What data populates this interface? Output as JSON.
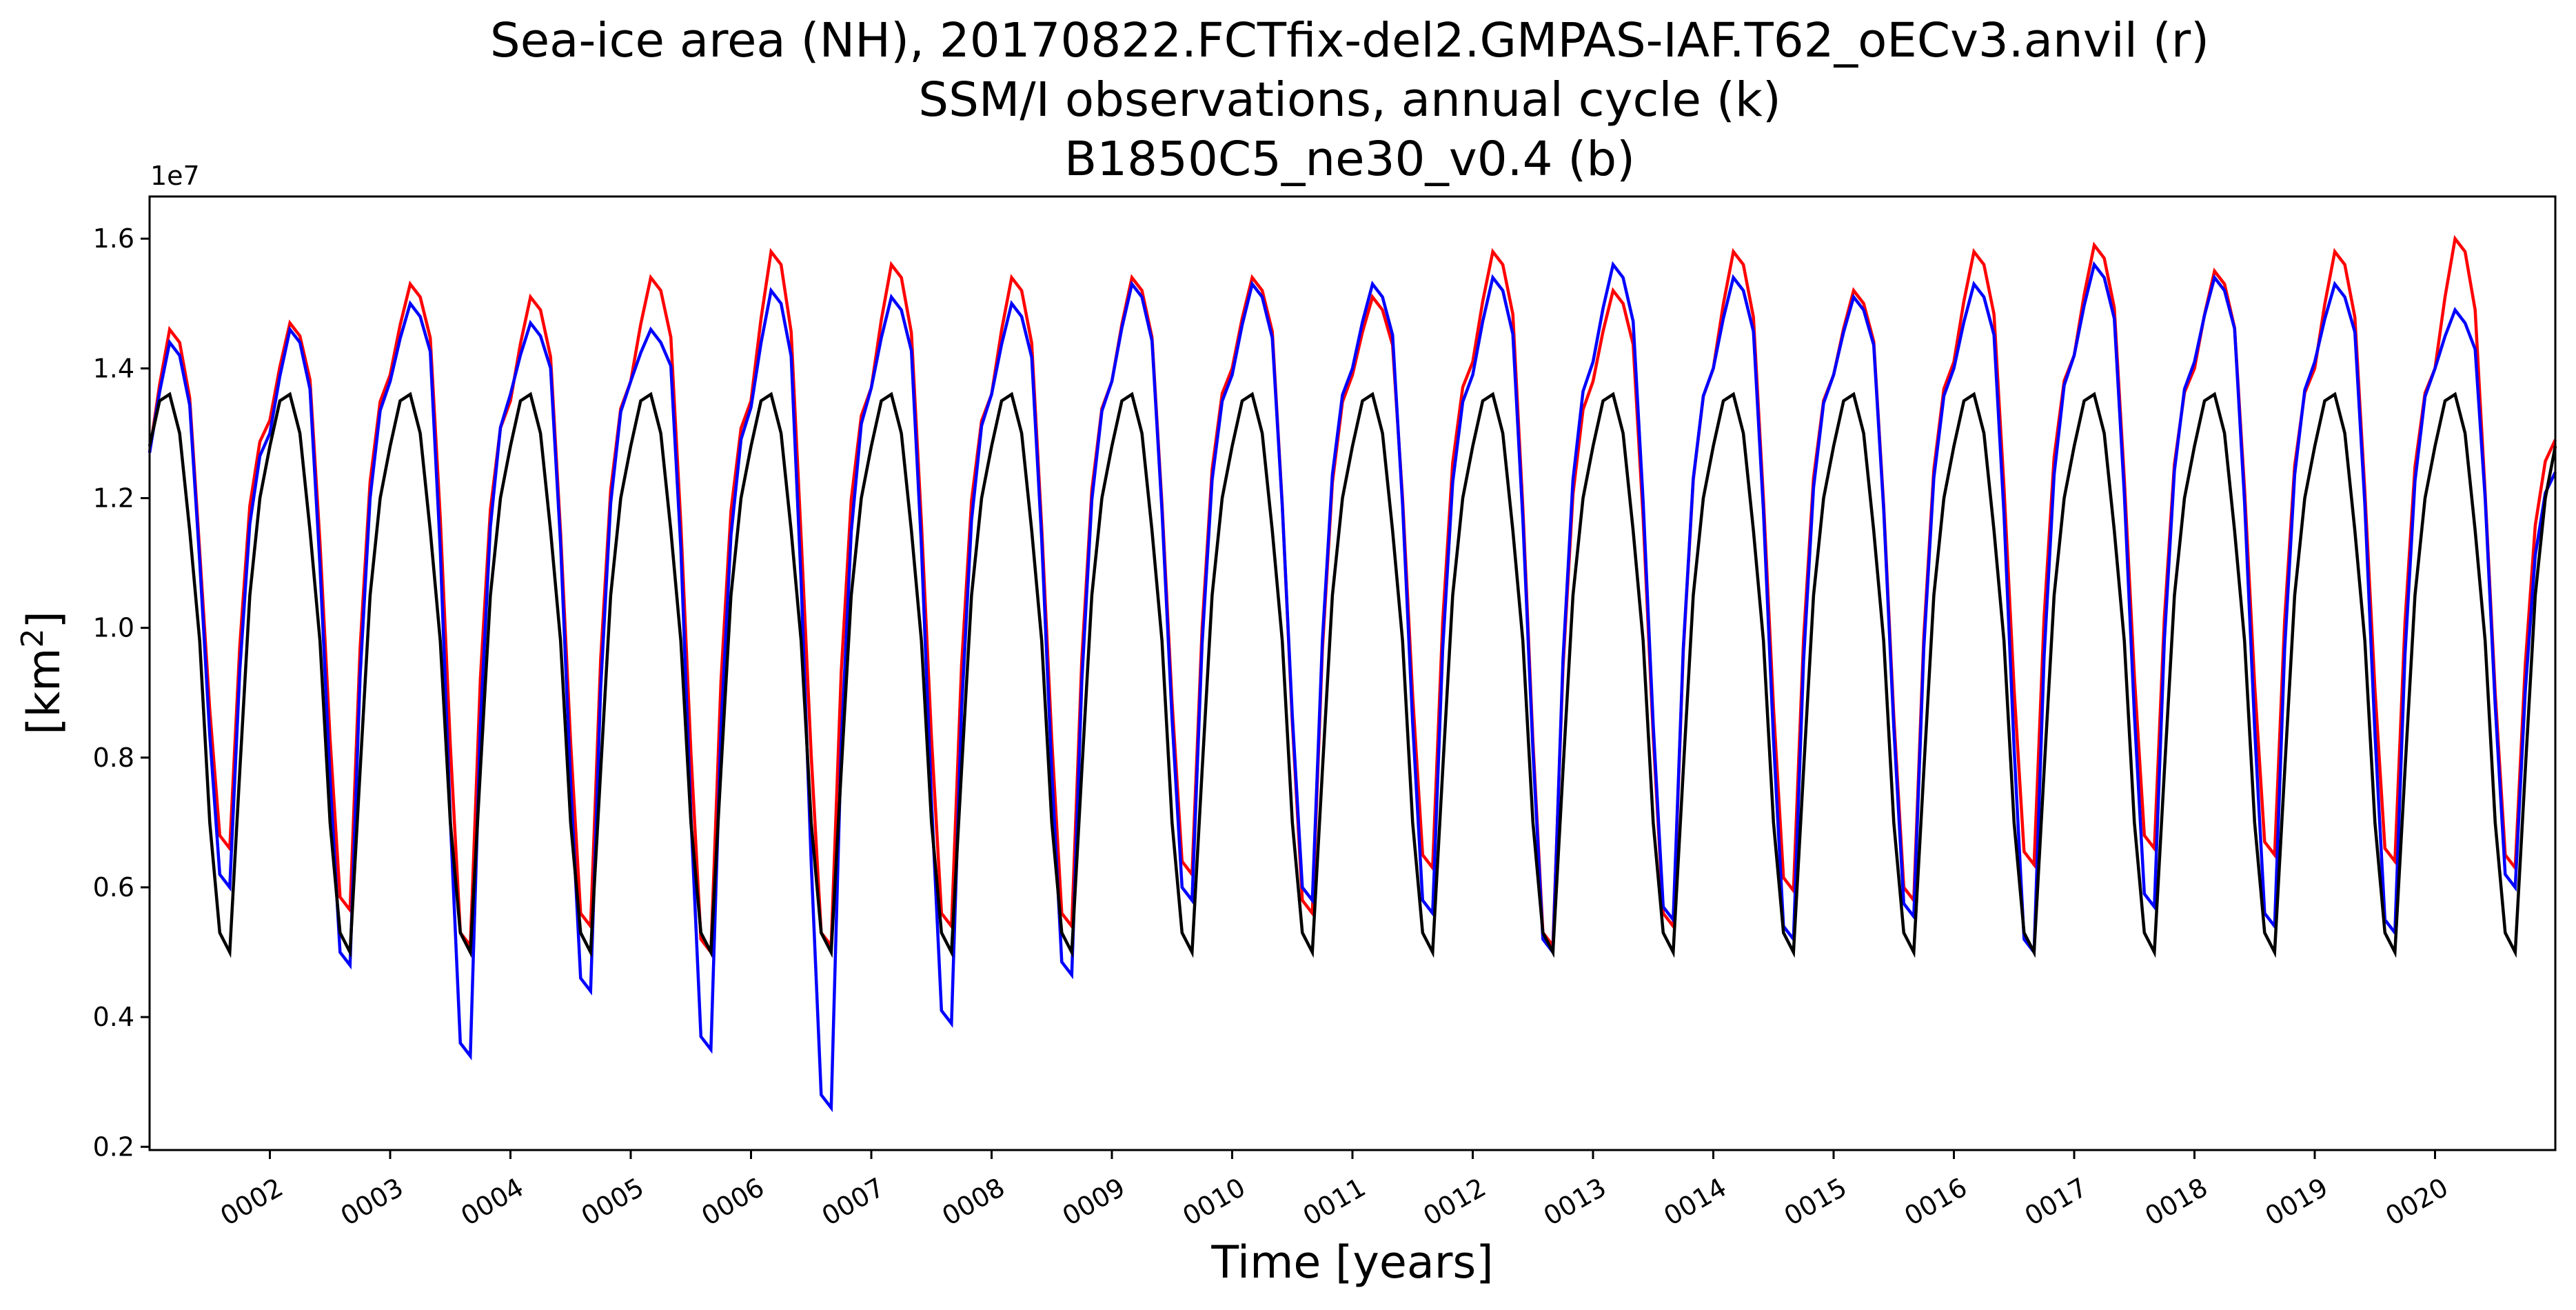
{
  "chart_data": {
    "type": "line",
    "title_lines": [
      "Sea-ice area (NH), 20170822.FCTfix-del2.GMPAS-IAF.T62_oECv3.anvil (r)",
      "SSM/I observations, annual cycle (k)",
      "B1850C5_ne30_v0.4 (b)"
    ],
    "xlabel": "Time [years]",
    "ylabel_base": "[km",
    "ylabel_sup": "2",
    "ylabel_end": "]",
    "y_offset_label": "1e7",
    "xlim": [
      1.0,
      21.0
    ],
    "ylim": [
      0.195,
      1.665
    ],
    "y_ticks": [
      0.2,
      0.4,
      0.6,
      0.8,
      1.0,
      1.2,
      1.4,
      1.6
    ],
    "y_tick_labels": [
      "0.2",
      "0.4",
      "0.6",
      "0.8",
      "1.0",
      "1.2",
      "1.4",
      "1.6"
    ],
    "x_ticks": [
      2,
      3,
      4,
      5,
      6,
      7,
      8,
      9,
      10,
      11,
      12,
      13,
      14,
      15,
      16,
      17,
      18,
      19,
      20
    ],
    "x_tick_labels": [
      "0002",
      "0003",
      "0004",
      "0005",
      "0006",
      "0007",
      "0008",
      "0009",
      "0010",
      "0011",
      "0012",
      "0013",
      "0014",
      "0015",
      "0016",
      "0017",
      "0018",
      "0019",
      "0020"
    ],
    "grid": false,
    "legend": "none",
    "series": [
      {
        "key": "obs",
        "color": "#000000",
        "annual_cycle": [
          1.28,
          1.35,
          1.36,
          1.3,
          1.15,
          0.98,
          0.7,
          0.53,
          0.5,
          0.78,
          1.05,
          1.2
        ],
        "repeat_years": 20
      },
      {
        "key": "mpas",
        "color": "#ff0000",
        "jan": [
          1.27,
          1.32,
          1.39,
          1.35,
          1.38,
          1.35,
          1.37,
          1.36,
          1.38,
          1.4,
          1.39,
          1.41,
          1.38,
          1.4,
          1.39,
          1.41,
          1.42,
          1.4,
          1.4,
          1.4
        ],
        "peak": [
          1.46,
          1.47,
          1.53,
          1.51,
          1.54,
          1.58,
          1.56,
          1.54,
          1.54,
          1.54,
          1.51,
          1.58,
          1.52,
          1.58,
          1.52,
          1.58,
          1.59,
          1.55,
          1.58,
          1.6
        ],
        "trough": [
          0.66,
          0.565,
          0.51,
          0.54,
          0.5,
          0.51,
          0.54,
          0.54,
          0.62,
          0.56,
          0.63,
          0.51,
          0.54,
          0.595,
          0.58,
          0.635,
          0.66,
          0.65,
          0.64,
          0.63
        ],
        "final": 1.29
      },
      {
        "key": "e3sm",
        "color": "#0000ff",
        "jan": [
          1.27,
          1.3,
          1.38,
          1.36,
          1.38,
          1.34,
          1.37,
          1.36,
          1.38,
          1.39,
          1.4,
          1.39,
          1.41,
          1.4,
          1.39,
          1.4,
          1.42,
          1.41,
          1.41,
          1.4
        ],
        "peak": [
          1.44,
          1.46,
          1.5,
          1.47,
          1.46,
          1.52,
          1.51,
          1.5,
          1.53,
          1.53,
          1.53,
          1.54,
          1.56,
          1.54,
          1.51,
          1.53,
          1.56,
          1.54,
          1.53,
          1.49
        ],
        "trough": [
          0.6,
          0.48,
          0.34,
          0.44,
          0.35,
          0.26,
          0.39,
          0.465,
          0.58,
          0.58,
          0.56,
          0.5,
          0.55,
          0.52,
          0.555,
          0.5,
          0.57,
          0.54,
          0.53,
          0.6
        ],
        "final": 1.24
      }
    ]
  }
}
